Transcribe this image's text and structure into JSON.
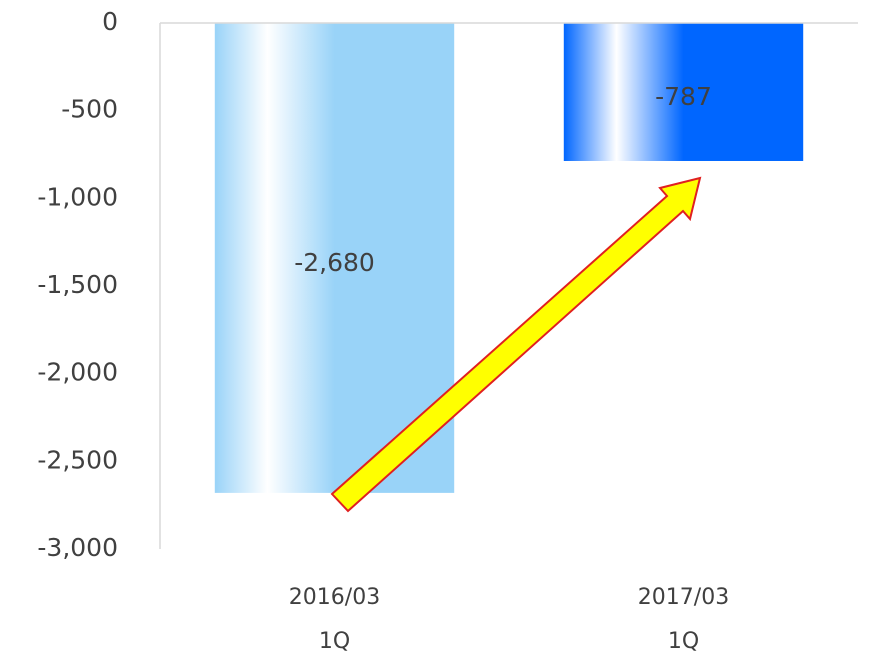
{
  "chart_data": {
    "type": "bar",
    "categories": [
      [
        "2016/03",
        "1Q"
      ],
      [
        "2017/03",
        "1Q"
      ]
    ],
    "values": [
      -2680,
      -787
    ],
    "value_labels": [
      "-2,680",
      "-787"
    ],
    "colors": [
      "#99d3f8",
      "#0066ff"
    ],
    "ylim": [
      -3000,
      0
    ],
    "yticks": [
      0,
      -500,
      {
        "value": -1000,
        "label": "-1,000"
      },
      {
        "value": -1500,
        "label": "-1,500"
      },
      {
        "value": -2000,
        "label": "-2,000"
      },
      {
        "value": -2500,
        "label": "-2,500"
      },
      {
        "value": -3000,
        "label": "-3,000"
      }
    ],
    "grid": false
  }
}
